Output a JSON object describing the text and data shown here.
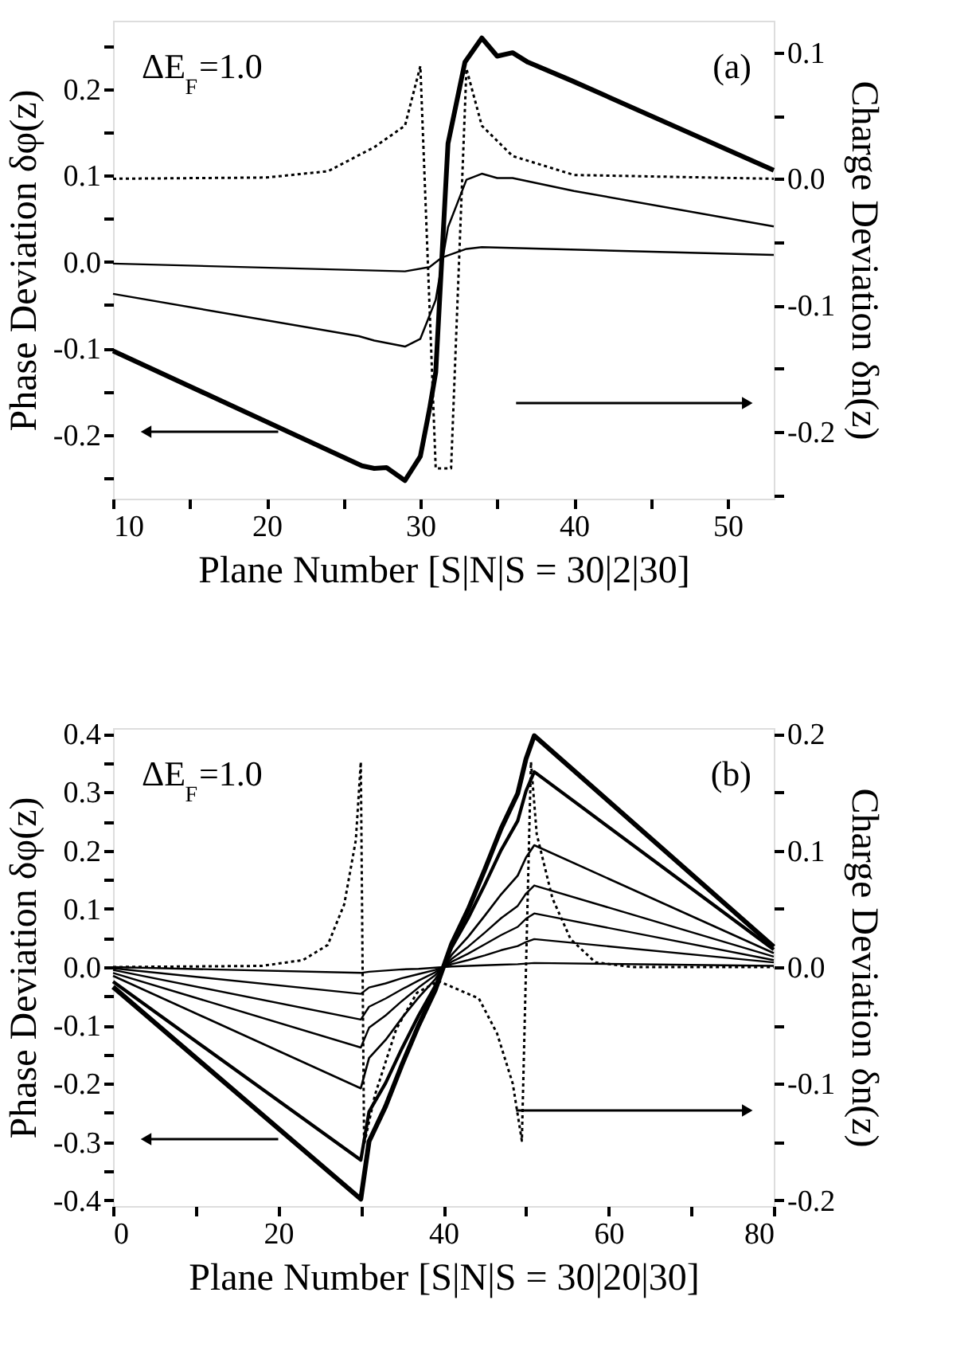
{
  "chart_data": [
    {
      "type": "line",
      "xlabel": "Plane Number [S|N|S = 30|2|30]",
      "ylabel": "Phase Deviation δφ(z)",
      "y2label": "Charge Deviation δn(z)",
      "annotations": [
        "ΔE$_{F}$=1.0",
        "(a)"
      ],
      "xlim": [
        10,
        53
      ],
      "ylim": [
        -0.274,
        0.279
      ],
      "y2lim": [
        -0.253,
        0.125
      ],
      "xticks": [
        10,
        {
          "value": 15,
          "label": null
        },
        20,
        {
          "value": 25,
          "label": null
        },
        30,
        {
          "value": 35,
          "label": null
        },
        40,
        {
          "value": 45,
          "label": null
        },
        50
      ],
      "yticks": [
        {
          "value": -0.25,
          "label": null
        },
        -0.2,
        {
          "value": -0.15,
          "label": null
        },
        -0.1,
        {
          "value": -0.05,
          "label": null
        },
        {
          "value": 0,
          "label": "0.0"
        },
        {
          "value": 0.05,
          "label": null
        },
        0.1,
        {
          "value": 0.15,
          "label": null
        },
        0.2,
        {
          "value": 0.25,
          "label": null
        }
      ],
      "y2ticks": [
        {
          "value": -0.25,
          "label": null
        },
        -0.2,
        {
          "value": -0.15,
          "label": null
        },
        -0.1,
        {
          "value": -0.05,
          "label": null
        },
        {
          "value": 0,
          "label": "0.0"
        },
        {
          "value": 0.05,
          "label": null
        },
        0.1
      ],
      "grid": false,
      "legend": false,
      "marker": "none",
      "series": [
        {
          "color": "#000000",
          "line_style": "solid",
          "x": [
            10,
            26.2,
            27,
            27.8,
            29,
            30,
            30.6,
            31,
            31.8,
            32.9,
            34,
            35,
            36,
            37,
            39.8,
            53
          ],
          "values": [
            -0.103,
            -0.236,
            -0.239,
            -0.238,
            -0.253,
            -0.225,
            -0.17,
            -0.128,
            0.137,
            0.231,
            0.259,
            0.238,
            0.242,
            0.231,
            0.21,
            0.106
          ]
        },
        {
          "color": "#000000",
          "line_style": "solid",
          "x": [
            10,
            26,
            27,
            29,
            30,
            31,
            31.8,
            33,
            34,
            35,
            36,
            40,
            53
          ],
          "values": [
            -0.037,
            -0.086,
            -0.091,
            -0.098,
            -0.089,
            -0.044,
            0.04,
            0.095,
            0.102,
            0.097,
            0.097,
            0.082,
            0.041
          ]
        },
        {
          "color": "#000000",
          "line_style": "solid",
          "x": [
            10,
            29,
            30.6,
            31.4,
            33,
            34,
            53
          ],
          "values": [
            -0.002,
            -0.011,
            -0.006,
            0.005,
            0.015,
            0.017,
            0.008
          ]
        },
        {
          "color": "#000000",
          "line_style": "dotted",
          "axis": "y2",
          "x": [
            10,
            20,
            24,
            27,
            29,
            30,
            31,
            32,
            33,
            34,
            36,
            40,
            53
          ],
          "values": [
            0,
            0.001,
            0.006,
            0.025,
            0.042,
            0.089,
            -0.229,
            -0.229,
            0.087,
            0.042,
            0.018,
            0.003,
            0
          ]
        }
      ]
    },
    {
      "type": "line",
      "xlabel": "Plane Number [S|N|S = 30|20|30]",
      "ylabel": "Phase Deviation δφ(z)",
      "y2label": "Charge Deviation δn(z)",
      "annotations": [
        "ΔE$_{F}$=1.0",
        "(b)"
      ],
      "xlim": [
        0,
        80
      ],
      "ylim": [
        -0.41,
        0.41
      ],
      "y2lim": [
        -0.205,
        0.205
      ],
      "xticks": [
        0,
        {
          "value": 10,
          "label": null
        },
        20,
        {
          "value": 30,
          "label": null
        },
        40,
        {
          "value": 50,
          "label": null
        },
        60,
        {
          "value": 70,
          "label": null
        },
        80
      ],
      "yticks": [
        -0.4,
        {
          "value": -0.35,
          "label": null
        },
        -0.3,
        {
          "value": -0.25,
          "label": null
        },
        -0.2,
        {
          "value": -0.15,
          "label": null
        },
        -0.1,
        {
          "value": -0.05,
          "label": null
        },
        {
          "value": 0,
          "label": "0.0"
        },
        {
          "value": 0.05,
          "label": null
        },
        0.1,
        {
          "value": 0.15,
          "label": null
        },
        0.2,
        {
          "value": 0.25,
          "label": null
        },
        0.3,
        {
          "value": 0.35,
          "label": null
        },
        0.4
      ],
      "y2ticks": [
        -0.2,
        {
          "value": -0.15,
          "label": null
        },
        -0.1,
        {
          "value": -0.05,
          "label": null
        },
        {
          "value": 0,
          "label": "0.0"
        },
        {
          "value": 0.05,
          "label": null
        },
        0.1,
        {
          "value": 0.15,
          "label": null
        },
        0.2
      ],
      "grid": false,
      "legend": false,
      "marker": "none",
      "x": [
        0,
        30,
        31,
        33,
        35,
        37,
        39,
        40,
        41,
        43,
        45,
        47,
        49,
        50,
        51,
        80
      ],
      "series": [
        {
          "color": "#000000",
          "line_style": "solid",
          "values": [
            0,
            -0.01,
            -0.008,
            -0.006,
            -0.004,
            -0.003,
            -0.001,
            0,
            0.001,
            0.002,
            0.003,
            0.004,
            0.005,
            0.006,
            0.007,
            0.002
          ]
        },
        {
          "color": "#000000",
          "line_style": "solid",
          "values": [
            -0.002,
            -0.046,
            -0.035,
            -0.028,
            -0.019,
            -0.012,
            -0.005,
            0,
            0.005,
            0.012,
            0.02,
            0.029,
            0.036,
            0.043,
            0.048,
            0.008
          ]
        },
        {
          "color": "#000000",
          "line_style": "solid",
          "values": [
            -0.005,
            -0.09,
            -0.068,
            -0.054,
            -0.038,
            -0.023,
            -0.009,
            0,
            0.009,
            0.023,
            0.039,
            0.055,
            0.069,
            0.083,
            0.092,
            0.012
          ]
        },
        {
          "color": "#000000",
          "line_style": "solid",
          "values": [
            -0.01,
            -0.138,
            -0.104,
            -0.083,
            -0.058,
            -0.035,
            -0.014,
            0,
            0.014,
            0.035,
            0.059,
            0.084,
            0.105,
            0.126,
            0.14,
            0.018
          ]
        },
        {
          "color": "#000000",
          "line_style": "solid",
          "values": [
            -0.015,
            -0.208,
            -0.156,
            -0.125,
            -0.087,
            -0.052,
            -0.021,
            0,
            0.021,
            0.052,
            0.088,
            0.125,
            0.157,
            0.188,
            0.209,
            0.024
          ]
        },
        {
          "color": "#000000",
          "line_style": "solid",
          "values": [
            -0.025,
            -0.331,
            -0.248,
            -0.199,
            -0.139,
            -0.083,
            -0.033,
            0,
            0.034,
            0.084,
            0.141,
            0.201,
            0.251,
            0.302,
            0.335,
            0.03
          ]
        },
        {
          "color": "#000000",
          "line_style": "solid",
          "values": [
            -0.034,
            -0.398,
            -0.299,
            -0.239,
            -0.167,
            -0.1,
            -0.04,
            0,
            0.04,
            0.099,
            0.167,
            0.238,
            0.298,
            0.357,
            0.397,
            0.035
          ]
        },
        {
          "color": "#000000",
          "line_style": "dotted",
          "axis": "y2",
          "x": [
            0,
            18,
            23,
            26,
            28,
            29.4,
            30,
            30.4,
            31.7,
            34.3,
            36.8,
            39.4,
            44.3,
            46.5,
            48.4,
            49.5,
            50.6,
            51.3,
            53.2,
            55.4,
            58.4,
            62.9,
            80
          ],
          "values": [
            0,
            0.001,
            0.006,
            0.019,
            0.054,
            0.109,
            0.176,
            -0.152,
            -0.11,
            -0.053,
            -0.022,
            -0.012,
            -0.027,
            -0.057,
            -0.1,
            -0.149,
            0.176,
            0.114,
            0.059,
            0.024,
            0.004,
            0,
            0
          ]
        }
      ]
    }
  ]
}
